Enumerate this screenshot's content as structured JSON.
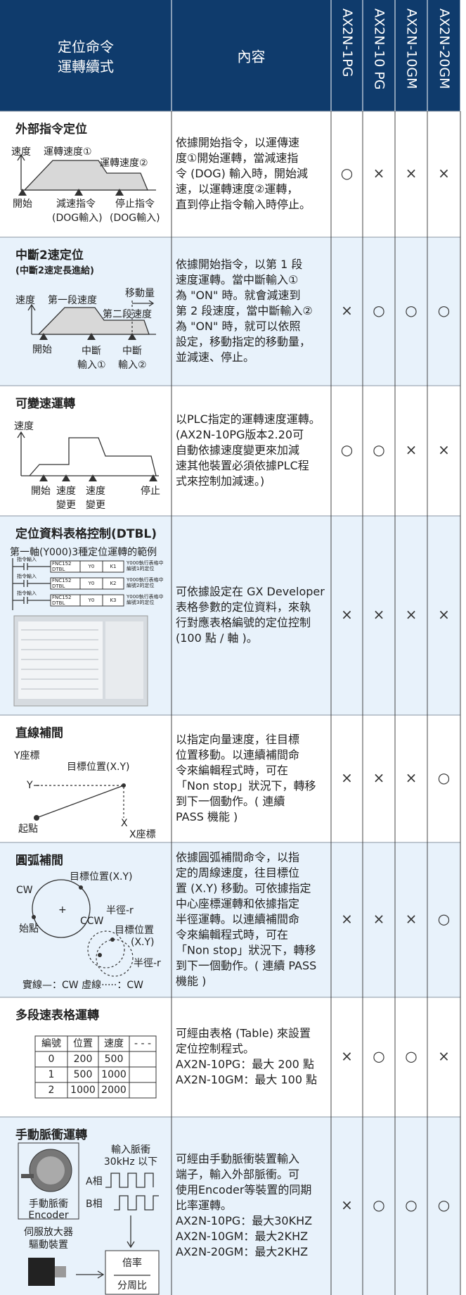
{
  "header": {
    "title_lines": [
      "定位命令",
      "運轉續式"
    ],
    "content": "內容",
    "models": [
      "AX2N-1PG",
      "AX2N-10 PG",
      "AX2N-10GM",
      "AX2N-20GM"
    ]
  },
  "rows": [
    {
      "title": "外部指令定位",
      "diagram": [
        "速度",
        "運轉速度①",
        "運轉速度②",
        "開始",
        "減速指令",
        "停止指令",
        "(DOG輸入)",
        "(DOG輸入)"
      ],
      "description": [
        "依據開始指令，以運傳速",
        "度①開始運轉，當減速指",
        "令 (DOG) 輸入時，開始減",
        "速，以運轉速度②運轉，",
        "直到停止指令輸入時停止。"
      ],
      "support": [
        "○",
        "×",
        "×",
        "×"
      ]
    },
    {
      "title": "中斷2速定位",
      "subtitle": "(中斷2速定長進給)",
      "diagram": [
        "速度",
        "第一段速度",
        "移動量",
        "第二段速度",
        "開始",
        "中斷",
        "中斷",
        "輸入①",
        "輸入②"
      ],
      "description": [
        "依據開始指令，以第 1 段",
        "速度運轉。當中斷輸入①",
        "為 \"ON\" 時。就會減速到",
        "第 2 段速度，當中斷輸入②",
        "為 \"ON\" 時，就可以依照",
        "設定，移動指定的移動量，",
        "並減速、停止。"
      ],
      "support": [
        "×",
        "○",
        "○",
        "○"
      ]
    },
    {
      "title": "可變速運轉",
      "diagram": [
        "速度",
        "開始",
        "速度",
        "速度",
        "停止",
        "變更",
        "變更"
      ],
      "description": [
        "以PLC指定的運轉速度運轉。",
        "(AX2N-10PG版本2.20可",
        "自動依據速度變更來加減",
        "速其他裝置必須依據PLC程",
        "式來控制加減速。)"
      ],
      "support": [
        "○",
        "○",
        "×",
        "×"
      ]
    },
    {
      "title": "定位資料表格控制(DTBL)",
      "subtitle": "第一軸(Y000)3種定位運轉的範例",
      "ladder": [
        {
          "input": "指令輸入",
          "fnc": "FNC152",
          "dtbl": "DTBL",
          "y": "Y0",
          "k": "K1",
          "note": [
            "Y000執行表格中",
            "編號1的定位"
          ]
        },
        {
          "input": "指令輸入",
          "fnc": "FNC152",
          "dtbl": "DTBL",
          "y": "Y0",
          "k": "K2",
          "note": [
            "Y000執行表格中",
            "編號2的定位"
          ]
        },
        {
          "input": "指令輸入",
          "fnc": "FNC152",
          "dtbl": "DTBL",
          "y": "Y0",
          "k": "K3",
          "note": [
            "Y000執行表格中",
            "編號3的定位"
          ]
        }
      ],
      "description": [
        "可依據設定在 GX Developer",
        "表格參數的定位資料，來執",
        "行對應表格編號的定位控制",
        "(100 點 / 軸 )。"
      ],
      "support": [
        "×",
        "×",
        "×",
        "×"
      ]
    },
    {
      "title": "直線補間",
      "diagram": [
        "Y座標",
        "目標位置(X.Y)",
        "Y",
        "起點",
        "X",
        "X座標"
      ],
      "description": [
        "以指定向量速度，往目標",
        "位置移動。以連續補間命",
        "令來編輯程式時，可在",
        "「Non stop」狀況下，轉移",
        "到下一個動作。( 連續",
        "PASS 機能 )"
      ],
      "support": [
        "×",
        "×",
        "×",
        "○"
      ]
    },
    {
      "title": "圓弧補間",
      "diagram": [
        "目標位置(X.Y)",
        "CW",
        "+",
        "CCW",
        "半徑-r",
        "始點",
        "目標位置",
        "(X.Y)",
        "半徑-r",
        "實線—：CW  虛線·····：CW"
      ],
      "description": [
        "依據圓弧補間命令，以指",
        "定的周線速度，往目標位",
        "置 (X.Y) 移動。可依據指定",
        "中心座標運轉和依據指定",
        "半徑運轉。以連續補間命",
        "令來編輯程式時，可在",
        "「Non stop」狀況下，轉移",
        "到下一個動作。( 連續 PASS",
        "機能 )"
      ],
      "support": [
        "×",
        "×",
        "×",
        "○"
      ]
    },
    {
      "title": "多段速表格運轉",
      "table": {
        "header": [
          "編號",
          "位置",
          "速度",
          "- - -"
        ],
        "rows": [
          [
            "0",
            "200",
            "500"
          ],
          [
            "1",
            "500",
            "1000"
          ],
          [
            "2",
            "1000",
            "2000"
          ]
        ]
      },
      "description": [
        "可經由表格 (Table) 來設置",
        "定位控制程式。",
        "AX2N-10PG：最大 200 點",
        "AX2N-10GM：最大 100 點"
      ],
      "support": [
        "×",
        "○",
        "○",
        "×"
      ]
    },
    {
      "title": "手動脈衝運轉",
      "diagram": [
        "輸入脈衝",
        "30kHz 以下",
        "A相",
        "B相",
        "手動脈衝",
        "Encoder",
        "伺服放大器",
        "驅動裝置",
        "倍率",
        "分周比"
      ],
      "description": [
        "可經由手動脈衝裝置輸入",
        "端子，輸入外部脈衝。可",
        "使用Encoder等裝置的同期",
        "比率運轉。",
        "AX2N-10PG：最大30KHZ",
        "AX2N-10GM：最大2KHZ",
        "AX2N-20GM：最大2KHZ"
      ],
      "support": [
        "×",
        "○",
        "○",
        "○"
      ]
    }
  ]
}
